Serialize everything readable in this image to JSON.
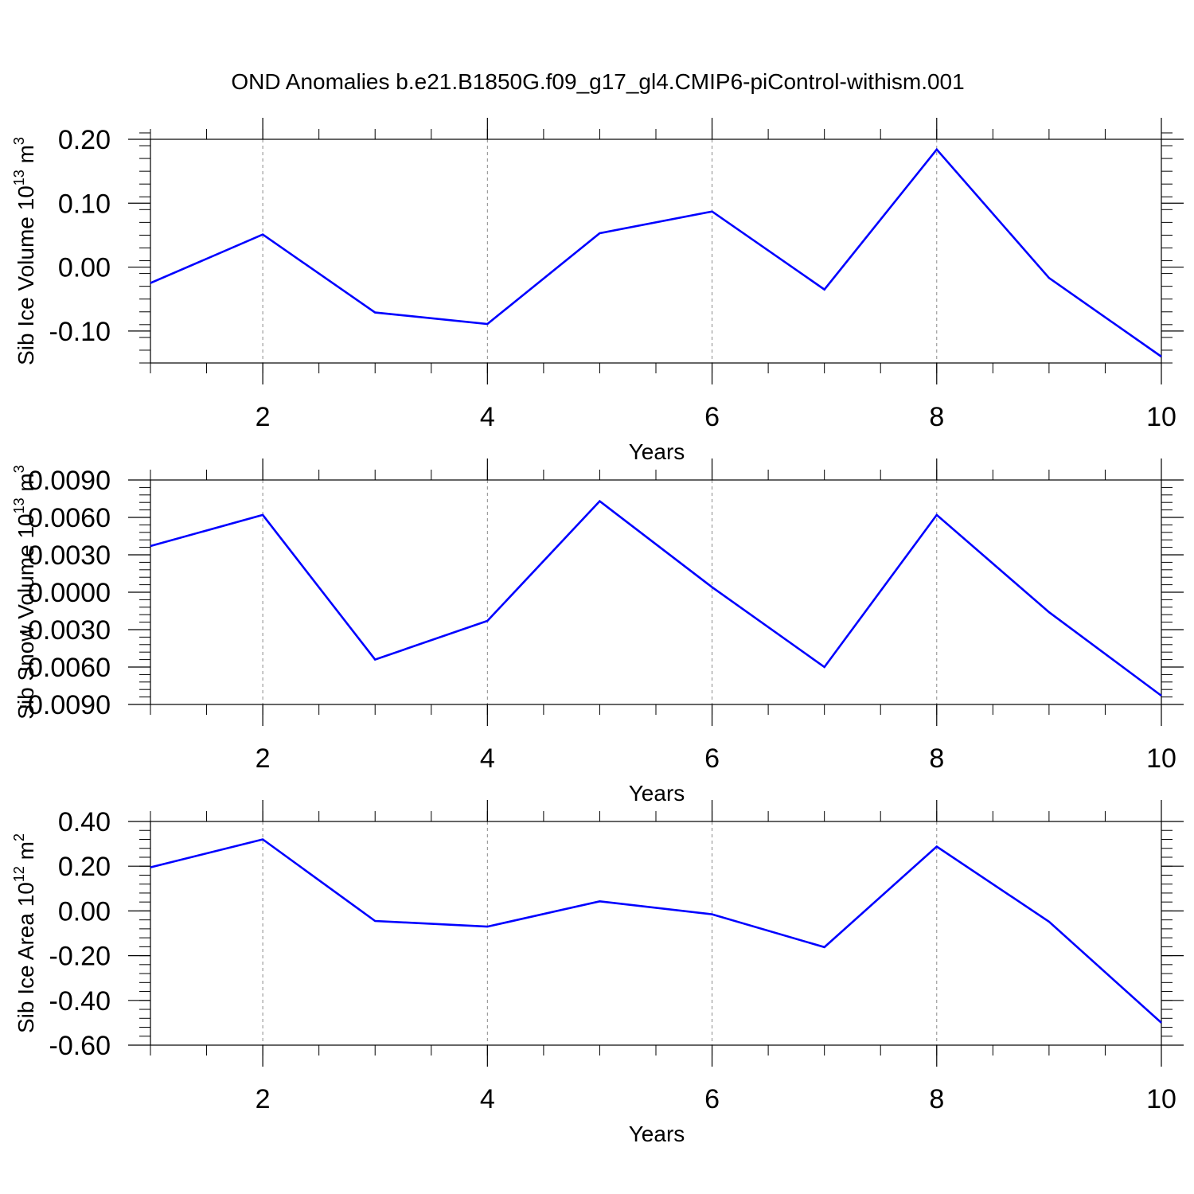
{
  "figure": {
    "title": "OND Anomalies b.e21.B1850G.f09_g17_gl4.CMIP6-piControl-withism.001"
  },
  "chart_data": [
    {
      "type": "line",
      "xlabel": "Years",
      "ylabel": "Sib Ice Volume 10",
      "ylabel_exp1": "13",
      "ylabel_unit": " m",
      "ylabel_exp2": "3",
      "x": [
        1,
        2,
        3,
        4,
        5,
        6,
        7,
        8,
        9,
        10
      ],
      "series": [
        {
          "values": [
            -0.025,
            0.051,
            -0.071,
            -0.089,
            0.053,
            0.087,
            -0.035,
            0.184,
            -0.017,
            -0.14
          ]
        }
      ],
      "xlim": [
        1,
        10
      ],
      "ylim": [
        -0.15,
        0.2
      ],
      "xticks": [
        2,
        4,
        6,
        8,
        10
      ],
      "xtick_labels": [
        "2",
        "4",
        "6",
        "8",
        "10"
      ],
      "yticks": [
        0.2,
        0.1,
        0.0,
        -0.1
      ],
      "ytick_labels": [
        "0.20",
        "0.10",
        "0.00",
        "-0.10"
      ],
      "grid": "vertical dashed at major x ticks",
      "line_color": "#0000ff"
    },
    {
      "type": "line",
      "xlabel": "Years",
      "ylabel": "Sib Snow Volume 10",
      "ylabel_exp1": "13",
      "ylabel_unit": " m",
      "ylabel_exp2": "3",
      "x": [
        1,
        2,
        3,
        4,
        5,
        6,
        7,
        8,
        9,
        10
      ],
      "series": [
        {
          "values": [
            0.0037,
            0.0062,
            -0.0054,
            -0.0023,
            0.0073,
            0.0004,
            -0.006,
            0.0062,
            -0.0016,
            -0.0083
          ]
        }
      ],
      "xlim": [
        1,
        10
      ],
      "ylim": [
        -0.009,
        0.009
      ],
      "xticks": [
        2,
        4,
        6,
        8,
        10
      ],
      "xtick_labels": [
        "2",
        "4",
        "6",
        "8",
        "10"
      ],
      "yticks": [
        0.009,
        0.006,
        0.003,
        0.0,
        -0.003,
        -0.006,
        -0.009
      ],
      "ytick_labels": [
        "0.0090",
        "0.0060",
        "0.0030",
        "0.0000",
        "-0.0030",
        "-0.0060",
        "-0.0090"
      ],
      "grid": "vertical dashed at major x ticks",
      "line_color": "#0000ff"
    },
    {
      "type": "line",
      "xlabel": "Years",
      "ylabel": "Sib Ice Area 10",
      "ylabel_exp1": "12",
      "ylabel_unit": " m",
      "ylabel_exp2": "2",
      "x": [
        1,
        2,
        3,
        4,
        5,
        6,
        7,
        8,
        9,
        10
      ],
      "series": [
        {
          "values": [
            0.195,
            0.32,
            -0.045,
            -0.07,
            0.043,
            -0.015,
            -0.162,
            0.288,
            -0.048,
            -0.5
          ]
        }
      ],
      "xlim": [
        1,
        10
      ],
      "ylim": [
        -0.6,
        0.4
      ],
      "xticks": [
        2,
        4,
        6,
        8,
        10
      ],
      "xtick_labels": [
        "2",
        "4",
        "6",
        "8",
        "10"
      ],
      "yticks": [
        0.4,
        0.2,
        0.0,
        -0.2,
        -0.4,
        -0.6
      ],
      "ytick_labels": [
        "0.40",
        "0.20",
        "0.00",
        "-0.20",
        "-0.40",
        "-0.60"
      ],
      "grid": "vertical dashed at major x ticks",
      "line_color": "#0000ff"
    }
  ]
}
